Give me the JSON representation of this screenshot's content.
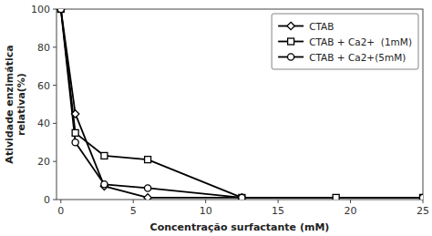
{
  "chart_data": {
    "type": "line",
    "x_label": "Concentração surfactante (mM)",
    "y_label": "Atividade enzimática\nrelativa(%)",
    "series": [
      {
        "name": "CTAB",
        "color": "black",
        "marker": "diamond",
        "x": [
          0,
          1,
          3,
          6,
          12.5
        ],
        "values": [
          100,
          45,
          7,
          1,
          1
        ]
      },
      {
        "name": "CTAB + Ca2+  (1mM)",
        "color": "black",
        "marker": "square",
        "x": [
          0,
          1,
          3,
          6,
          12.5,
          19,
          25
        ],
        "values": [
          100,
          35,
          23,
          21,
          1,
          1,
          1
        ]
      },
      {
        "name": "CTAB + Ca2+(5mM)",
        "color": "black",
        "marker": "circle",
        "x": [
          0,
          1,
          3,
          6,
          12.5,
          25
        ],
        "values": [
          100,
          30,
          8,
          6,
          1,
          1
        ]
      }
    ],
    "xlim": [
      -0.3,
      25
    ],
    "ylim": [
      0,
      100
    ],
    "xticks": [
      0,
      5,
      10,
      15,
      20,
      25
    ],
    "yticks": [
      0,
      20,
      40,
      60,
      80,
      100
    ],
    "grid": false,
    "legend": "upper right"
  }
}
